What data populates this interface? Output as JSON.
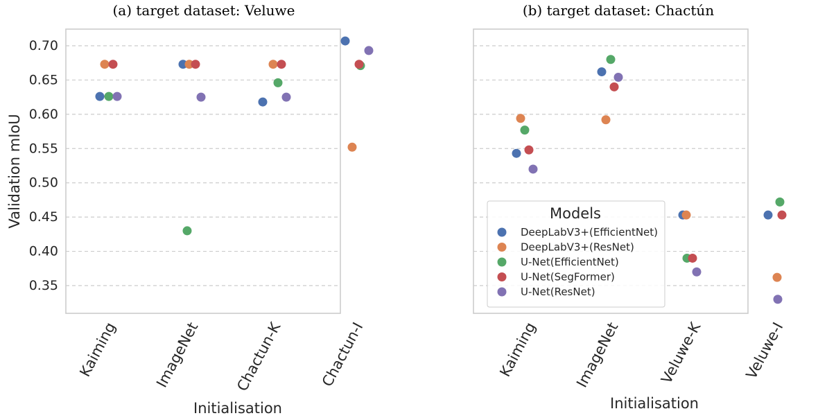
{
  "chart_data": [
    {
      "type": "scatter",
      "title": "(a) target dataset: Veluwe",
      "xlabel": "Initialisation",
      "ylabel": "Validation mIoU",
      "categories": [
        "Kaiming",
        "ImageNet",
        "Chactun-K",
        "Chactun-I"
      ],
      "yticks": [
        "0.35",
        "0.40",
        "0.45",
        "0.50",
        "0.55",
        "0.60",
        "0.65",
        "0.70"
      ],
      "ylim": [
        0.31,
        0.725
      ],
      "grid": "y dashed",
      "series": [
        {
          "name": "DeepLabV3+(EfficientNet)",
          "color": "#4c72b0",
          "values": [
            0.626,
            0.673,
            0.618,
            0.707
          ]
        },
        {
          "name": "DeepLabV3+(ResNet)",
          "color": "#dd8452",
          "values": [
            0.673,
            0.673,
            0.673,
            0.552
          ]
        },
        {
          "name": "U-Net(EfficientNet)",
          "color": "#55a868",
          "values": [
            0.626,
            0.43,
            0.646,
            0.671
          ]
        },
        {
          "name": "U-Net(SegFormer)",
          "color": "#c44e52",
          "values": [
            0.673,
            0.673,
            0.673,
            0.673
          ]
        },
        {
          "name": "U-Net(ResNet)",
          "color": "#8172b3",
          "values": [
            0.626,
            0.625,
            0.625,
            0.693
          ]
        }
      ]
    },
    {
      "type": "scatter",
      "title": "(b) target dataset: Chactún",
      "xlabel": "Initialisation",
      "ylabel": "",
      "categories": [
        "Kaiming",
        "ImageNet",
        "Veluwe-K",
        "Veluwe-I"
      ],
      "ylim": [
        0.31,
        0.725
      ],
      "grid": "y dashed",
      "legend": {
        "title": "Models",
        "position": "lower left"
      },
      "series": [
        {
          "name": "DeepLabV3+(EfficientNet)",
          "color": "#4c72b0",
          "values": [
            0.543,
            0.662,
            0.453,
            0.453
          ]
        },
        {
          "name": "DeepLabV3+(ResNet)",
          "color": "#dd8452",
          "values": [
            0.594,
            0.592,
            0.453,
            0.362
          ]
        },
        {
          "name": "U-Net(EfficientNet)",
          "color": "#55a868",
          "values": [
            0.577,
            0.68,
            0.39,
            0.472
          ]
        },
        {
          "name": "U-Net(SegFormer)",
          "color": "#c44e52",
          "values": [
            0.548,
            0.64,
            0.39,
            0.453
          ]
        },
        {
          "name": "U-Net(ResNet)",
          "color": "#8172b3",
          "values": [
            0.52,
            0.654,
            0.37,
            0.33
          ]
        }
      ]
    }
  ]
}
